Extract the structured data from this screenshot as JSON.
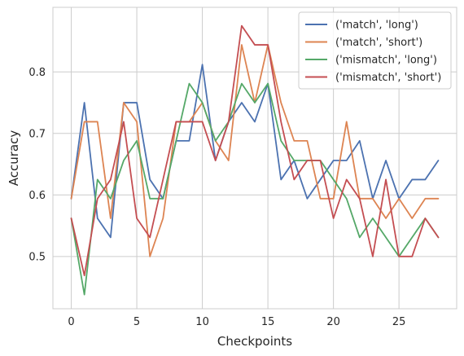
{
  "chart_data": {
    "type": "line",
    "xlabel": "Checkpoints",
    "ylabel": "Accuracy",
    "xlim": [
      -1.4,
      29.4
    ],
    "ylim": [
      0.415,
      0.905
    ],
    "xticks": [
      0,
      5,
      10,
      15,
      20,
      25
    ],
    "yticks": [
      0.5,
      0.6,
      0.7,
      0.8
    ],
    "grid": true,
    "legend_position": "top-right",
    "x": [
      0,
      1,
      2,
      3,
      4,
      5,
      6,
      7,
      8,
      9,
      10,
      11,
      12,
      13,
      14,
      15,
      16,
      17,
      18,
      19,
      20,
      21,
      22,
      23,
      24,
      25,
      26,
      27,
      28
    ],
    "series": [
      {
        "name": "('match', 'long')",
        "color": "#4c72b0",
        "values": [
          0.594,
          0.75,
          0.562,
          0.531,
          0.75,
          0.75,
          0.625,
          0.594,
          0.688,
          0.688,
          0.812,
          0.656,
          0.719,
          0.75,
          0.719,
          0.781,
          0.625,
          0.656,
          0.594,
          0.625,
          0.656,
          0.656,
          0.688,
          0.594,
          0.656,
          0.594,
          0.625,
          0.625,
          0.656
        ]
      },
      {
        "name": "('match', 'short')",
        "color": "#dd8452",
        "values": [
          0.594,
          0.719,
          0.719,
          0.562,
          0.75,
          0.719,
          0.5,
          0.562,
          0.719,
          0.719,
          0.75,
          0.688,
          0.656,
          0.844,
          0.75,
          0.844,
          0.75,
          0.688,
          0.688,
          0.594,
          0.594,
          0.719,
          0.594,
          0.594,
          0.562,
          0.594,
          0.562,
          0.594,
          0.594
        ]
      },
      {
        "name": "('mismatch', 'long')",
        "color": "#55a868",
        "values": [
          0.562,
          0.438,
          0.625,
          0.594,
          0.656,
          0.688,
          0.594,
          0.594,
          0.688,
          0.781,
          0.75,
          0.688,
          0.719,
          0.781,
          0.75,
          0.781,
          0.688,
          0.656,
          0.656,
          0.656,
          0.625,
          0.594,
          0.531,
          0.562,
          0.531,
          0.5,
          0.531,
          0.562,
          0.531
        ]
      },
      {
        "name": "('mismatch', 'short')",
        "color": "#c44e52",
        "values": [
          0.562,
          0.469,
          0.594,
          0.625,
          0.719,
          0.562,
          0.531,
          0.625,
          0.719,
          0.719,
          0.719,
          0.656,
          0.719,
          0.875,
          0.844,
          0.844,
          0.719,
          0.625,
          0.656,
          0.656,
          0.562,
          0.625,
          0.594,
          0.5,
          0.625,
          0.5,
          0.5,
          0.562,
          0.531
        ]
      }
    ]
  }
}
